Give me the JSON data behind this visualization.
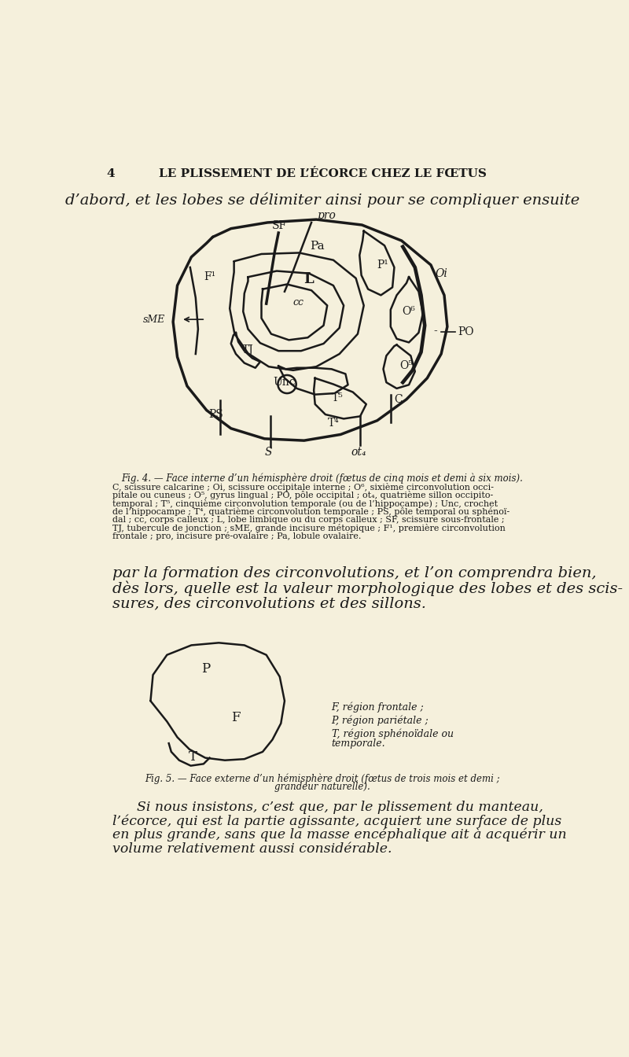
{
  "bg_color": "#f5f0dc",
  "page_number": "4",
  "header_text": "LE PLISSEMENT DE L’ÉCORCE CHEZ LE FŒTUS",
  "intro_text": "d’abord, et les lobes se délimiter ainsi pour se compliquer ensuite",
  "fig1_caption_title": "Fig. 4. — Face interne d’un hémisphère droit (fœtus de cinq mois et demi à six mois).",
  "middle_text_lines": [
    "par la formation des circonvolutions, et l’on comprendra bien,",
    "dès lors, quelle est la valeur morphologique des lobes et des scis-",
    "sures, des circonvolutions et des sillons."
  ],
  "fig2_legend_F": "F, région frontale ;",
  "fig2_legend_P": "P, région pariétale ;",
  "fig2_legend_T1": "T, région sphénoïdale ou",
  "fig2_legend_T2": "temporale.",
  "fig2_caption_line1": "Fig. 5. — Face externe d’un hémisphère droit (fœtus de trois mois et demi ;",
  "fig2_caption_line2": "grandeur naturelle).",
  "final_text_lines": [
    "Si nous insistons, c’est que, par le plissement du manteau,",
    "l’écorce, qui est la partie agissante, acquiert une surface de plus",
    "en plus grande, sans que la masse encéphalique ait à acquérir un",
    "volume relativement aussi considérable."
  ],
  "cap_lines": [
    "C, scissure calcarine ; Oi, scissure occipitale interne ; O⁶, sixième circonvolution occi-",
    "pitale ou cuneus ; O⁵, gyrus lingual ; PO, pôle occipital ; ot₄, quatrième sillon occipito-",
    "temporal ; T⁵, cinquième circonvolution temporale (ou de l’hippocampe) ; Unc, crochet",
    "de l’hippocampe ; T⁴, quatrième circonvolution temporale ; PS, pôle temporal ou sphénoï-",
    "dal ; cc, corps calleux ; L, lobe limbique ou du corps calleux ; SF, scissure sous-frontale ;",
    "TJ, tubercule de jonction ; sME, grande incisure métopique ; F¹, première circonvolution",
    "frontale ; pro, incisure pré-ovalaire ; Pa, lobule ovalaire."
  ],
  "line_color": "#1a1a1a",
  "text_color": "#1a1a1a"
}
